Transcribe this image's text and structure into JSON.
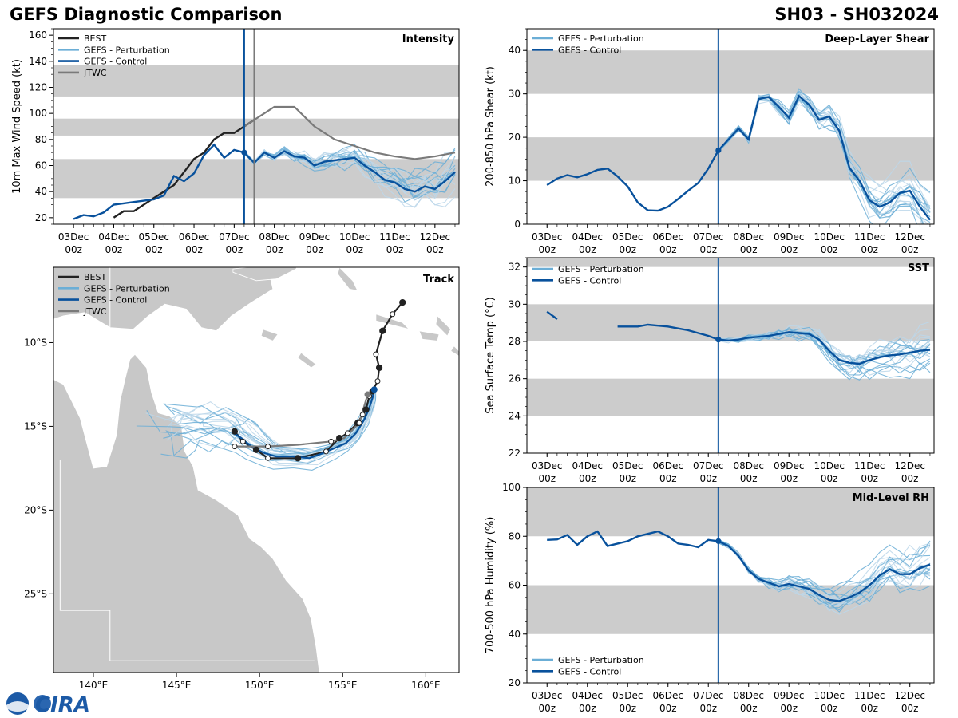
{
  "header": {
    "title": "GEFS Diagnostic Comparison",
    "storm_id": "SH03 - SH032024"
  },
  "footer": {
    "logo_text": "CIRA"
  },
  "colors": {
    "best": "#222222",
    "perturbation": "#6baed6",
    "perturbation_light": "#bcd7ea",
    "control": "#08519c",
    "jtwc": "#7a7a7a",
    "band": "#cccccc",
    "land": "#c8c8c8"
  },
  "legend_labels": {
    "best": "BEST",
    "perturbation": "GEFS - Perturbation",
    "control": "GEFS - Control",
    "jtwc": "JTWC"
  },
  "time_ticks": {
    "dates": [
      "03Dec",
      "04Dec",
      "05Dec",
      "06Dec",
      "07Dec",
      "08Dec",
      "09Dec",
      "10Dec",
      "11Dec",
      "12Dec"
    ],
    "hour": "00z"
  },
  "initial_time_day": 4.25,
  "chart_data": [
    {
      "id": "intensity",
      "type": "line",
      "title": "Intensity",
      "ylabel": "10m Max Wind Speed (kt)",
      "ylim": [
        15,
        165
      ],
      "yticks": [
        20,
        40,
        60,
        80,
        100,
        120,
        140,
        160
      ],
      "bands": [
        [
          35,
          65
        ],
        [
          83,
          96
        ],
        [
          113,
          137
        ]
      ],
      "jtwc_time_day": 4.5,
      "series": [
        {
          "name": "BEST",
          "x": [
            1,
            1.25,
            1.5,
            1.75,
            2,
            2.25,
            2.5,
            2.75,
            3,
            3.25,
            3.5,
            3.75,
            4,
            4.25,
            4.5
          ],
          "values": [
            20,
            25,
            25,
            30,
            35,
            40,
            45,
            55,
            65,
            70,
            80,
            85,
            85,
            90,
            95
          ]
        },
        {
          "name": "GEFS - Control",
          "x": [
            0,
            0.25,
            0.5,
            0.75,
            1,
            1.25,
            1.5,
            1.75,
            2,
            2.25,
            2.5,
            2.75,
            3,
            3.25,
            3.5,
            3.75,
            4,
            4.25,
            4.5,
            4.75,
            5,
            5.25,
            5.5,
            5.75,
            6,
            6.25,
            6.5,
            6.75,
            7,
            7.25,
            7.5,
            7.75,
            8,
            8.25,
            8.5,
            8.75,
            9,
            9.25,
            9.5
          ],
          "values": [
            19,
            22,
            21,
            24,
            30,
            31,
            32,
            33,
            34,
            37,
            52,
            48,
            54,
            68,
            76,
            66,
            72,
            70,
            62,
            70,
            66,
            71,
            67,
            66,
            60,
            63,
            64,
            65,
            66,
            60,
            55,
            49,
            47,
            42,
            40,
            44,
            42,
            48,
            55
          ]
        },
        {
          "name": "JTWC",
          "x": [
            4.25,
            4.5,
            5,
            5.5,
            6,
            6.5,
            7,
            7.5,
            8,
            8.5,
            9,
            9.5
          ],
          "values": [
            90,
            95,
            105,
            105,
            90,
            80,
            75,
            70,
            67,
            65,
            67,
            70
          ]
        }
      ]
    },
    {
      "id": "shear",
      "type": "line",
      "title": "Deep-Layer Shear",
      "ylabel": "200-850 hPa Shear (kt)",
      "ylim": [
        0,
        45
      ],
      "yticks": [
        0,
        10,
        20,
        30,
        40
      ],
      "bands": [
        [
          10,
          20
        ],
        [
          30,
          40
        ]
      ],
      "series": [
        {
          "name": "GEFS - Control",
          "x": [
            0,
            0.25,
            0.5,
            0.75,
            1,
            1.25,
            1.5,
            1.75,
            2,
            2.25,
            2.5,
            2.75,
            3,
            3.25,
            3.5,
            3.75,
            4,
            4.25,
            4.5,
            4.75,
            5,
            5.25,
            5.5,
            5.75,
            6,
            6.25,
            6.5,
            6.75,
            7,
            7.25,
            7.5,
            7.75,
            8,
            8.25,
            8.5,
            8.75,
            9,
            9.25,
            9.5
          ],
          "values": [
            9,
            10.5,
            11.3,
            10.8,
            11.5,
            12.5,
            12.8,
            11,
            8.7,
            5,
            3.2,
            3.1,
            4,
            5.8,
            7.7,
            9.5,
            12.8,
            17,
            19.5,
            22,
            19.5,
            28.8,
            29.3,
            27,
            24.5,
            29.5,
            27.5,
            24,
            24.8,
            21.5,
            13,
            10,
            5.5,
            4,
            5,
            7.2,
            7.7,
            4,
            1
          ]
        }
      ]
    },
    {
      "id": "sst",
      "type": "line",
      "title": "SST",
      "ylabel": "Sea Surface Temp (°C)",
      "ylim": [
        22,
        32.5
      ],
      "yticks": [
        22,
        24,
        26,
        28,
        30,
        32
      ],
      "bands": [
        [
          24,
          26
        ],
        [
          28,
          30
        ],
        [
          32,
          32.5
        ]
      ],
      "series": [
        {
          "name": "GEFS - Control (early)",
          "x": [
            0,
            0.25
          ],
          "values": [
            29.6,
            29.2
          ]
        },
        {
          "name": "GEFS - Control",
          "x": [
            1.75,
            2,
            2.25,
            2.5,
            2.75,
            3,
            3.25,
            3.5,
            3.75,
            4,
            4.25,
            4.5,
            4.75,
            5,
            5.25,
            5.5,
            5.75,
            6,
            6.25,
            6.5,
            6.75,
            7,
            7.25,
            7.5,
            7.75,
            8,
            8.25,
            8.5,
            8.75,
            9,
            9.25,
            9.5
          ],
          "values": [
            28.8,
            28.8,
            28.8,
            28.9,
            28.85,
            28.8,
            28.7,
            28.6,
            28.45,
            28.3,
            28.1,
            28.05,
            28.1,
            28.2,
            28.25,
            28.3,
            28.4,
            28.5,
            28.45,
            28.4,
            28.1,
            27.5,
            27.0,
            26.85,
            26.8,
            27.0,
            27.15,
            27.25,
            27.3,
            27.4,
            27.5,
            27.55
          ]
        }
      ]
    },
    {
      "id": "rh",
      "type": "line",
      "title": "Mid-Level RH",
      "ylabel": "700-500 hPa Humidity (%)",
      "ylim": [
        20,
        100
      ],
      "yticks": [
        20,
        40,
        60,
        80,
        100
      ],
      "bands": [
        [
          40,
          60
        ],
        [
          80,
          100
        ]
      ],
      "series": [
        {
          "name": "GEFS - Control",
          "x": [
            0,
            0.25,
            0.5,
            0.75,
            1,
            1.25,
            1.5,
            1.75,
            2,
            2.25,
            2.5,
            2.75,
            3,
            3.25,
            3.5,
            3.75,
            4,
            4.25,
            4.5,
            4.75,
            5,
            5.25,
            5.5,
            5.75,
            6,
            6.25,
            6.5,
            6.75,
            7,
            7.25,
            7.5,
            7.75,
            8,
            8.25,
            8.5,
            8.75,
            9,
            9.25,
            9.5
          ],
          "values": [
            78.5,
            78.7,
            80.5,
            76.5,
            80,
            82,
            76,
            77,
            78,
            80,
            81,
            82,
            80,
            77,
            76.5,
            75.5,
            78.5,
            78,
            76,
            72,
            66,
            62.5,
            61,
            59.5,
            60.5,
            59.5,
            58.5,
            56,
            54,
            53.5,
            55,
            57,
            60,
            64,
            66.5,
            64.5,
            64.5,
            67,
            68.5
          ]
        }
      ]
    },
    {
      "id": "track",
      "type": "scatter",
      "title": "Track",
      "lon_ticks": [
        "140°E",
        "145°E",
        "150°E",
        "155°E",
        "160°E"
      ],
      "lon_values": [
        140,
        145,
        150,
        155,
        160
      ],
      "lat_ticks": [
        "10°S",
        "15°S",
        "20°S",
        "25°S"
      ],
      "lat_values": [
        -10,
        -15,
        -20,
        -25
      ],
      "xlim": [
        137.6,
        162
      ],
      "ylim": [
        -29.7,
        -5.5
      ],
      "series": [
        {
          "name": "BEST",
          "lon": [
            158.6,
            158.0,
            157.4,
            157.0,
            157.2,
            157.1,
            156.8,
            156.6,
            156.4,
            156.2,
            155.9,
            155.3,
            154.8,
            154.0,
            152.3,
            150.5,
            149.8,
            149.0,
            148.5
          ],
          "lat": [
            -7.6,
            -8.3,
            -9.3,
            -10.7,
            -11.5,
            -12.3,
            -12.9,
            -13.2,
            -14.0,
            -14.3,
            -14.8,
            -15.4,
            -15.7,
            -16.5,
            -16.9,
            -16.9,
            -16.4,
            -15.9,
            -15.3
          ]
        },
        {
          "name": "GEFS - Control",
          "lon": [
            156.9,
            156.8,
            156.6,
            156.3,
            155.8,
            155.2,
            154.5,
            153.8,
            153.0,
            152.0,
            151.0,
            150.3,
            149.5,
            148.9,
            148.3
          ],
          "lat": [
            -12.8,
            -13.3,
            -13.9,
            -14.6,
            -15.4,
            -16.0,
            -16.3,
            -16.6,
            -16.9,
            -16.8,
            -16.8,
            -16.6,
            -16.2,
            -15.7,
            -15.3
          ]
        },
        {
          "name": "JTWC",
          "lon": [
            156.5,
            156.0,
            155.1,
            154.3,
            152.3,
            150.5,
            149.2,
            148.5
          ],
          "lat": [
            -13.1,
            -14.8,
            -15.7,
            -15.9,
            -16.1,
            -16.2,
            -16.2,
            -16.2
          ]
        }
      ]
    }
  ]
}
